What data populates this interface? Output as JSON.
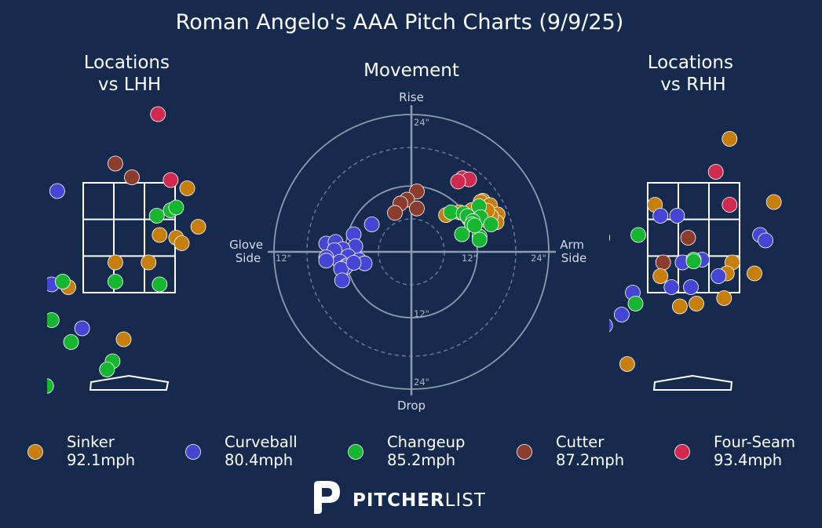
{
  "chart_data": [
    {
      "type": "scatter",
      "title": "Roman Angelo's AAA Pitch Charts (9/9/25)",
      "subtitle": "Locations\nvs LHH",
      "zone_key": "lhh",
      "points": [
        {
          "pitch": "Four-Seam",
          "x": 0.52,
          "y": 4.75
        },
        {
          "pitch": "Four-Seam",
          "x": 0.75,
          "y": 3.55
        },
        {
          "pitch": "Cutter",
          "x": -0.25,
          "y": 3.85
        },
        {
          "pitch": "Cutter",
          "x": 0.05,
          "y": 3.6
        },
        {
          "pitch": "Cutter",
          "x": -1.78,
          "y": 0.05
        },
        {
          "pitch": "Curveball",
          "x": -1.3,
          "y": 3.35
        },
        {
          "pitch": "Curveball",
          "x": -1.4,
          "y": 1.65
        },
        {
          "pitch": "Curveball",
          "x": -0.85,
          "y": 0.85
        },
        {
          "pitch": "Sinker",
          "x": 1.05,
          "y": 3.4
        },
        {
          "pitch": "Sinker",
          "x": 1.25,
          "y": 2.7
        },
        {
          "pitch": "Sinker",
          "x": 0.55,
          "y": 2.55
        },
        {
          "pitch": "Sinker",
          "x": 0.85,
          "y": 2.5
        },
        {
          "pitch": "Sinker",
          "x": 0.95,
          "y": 2.4
        },
        {
          "pitch": "Sinker",
          "x": -0.25,
          "y": 2.05
        },
        {
          "pitch": "Sinker",
          "x": 0.35,
          "y": 2.05
        },
        {
          "pitch": "Sinker",
          "x": -1.1,
          "y": 1.6
        },
        {
          "pitch": "Sinker",
          "x": -0.1,
          "y": 0.65
        },
        {
          "pitch": "Changeup",
          "x": 0.5,
          "y": 2.9
        },
        {
          "pitch": "Changeup",
          "x": 0.75,
          "y": 3.0
        },
        {
          "pitch": "Changeup",
          "x": 0.85,
          "y": 3.05
        },
        {
          "pitch": "Changeup",
          "x": -1.2,
          "y": 1.7
        },
        {
          "pitch": "Changeup",
          "x": -0.25,
          "y": 1.7
        },
        {
          "pitch": "Changeup",
          "x": 0.55,
          "y": 1.65
        },
        {
          "pitch": "Changeup",
          "x": -1.4,
          "y": 1.0
        },
        {
          "pitch": "Changeup",
          "x": -1.05,
          "y": 0.6
        },
        {
          "pitch": "Changeup",
          "x": -0.3,
          "y": 0.25
        },
        {
          "pitch": "Changeup",
          "x": -0.4,
          "y": 0.1
        },
        {
          "pitch": "Changeup",
          "x": -1.5,
          "y": -0.2
        }
      ]
    },
    {
      "type": "scatter",
      "subtitle": "Movement",
      "axis_words": {
        "top": "Rise",
        "bottom": "Drop",
        "left": "Glove\nSide",
        "right": "Arm\nSide"
      },
      "ring_labels": [
        "24\"",
        "12\"",
        "12\"",
        "24\"",
        "12\"",
        "24\""
      ],
      "max_inches": 25,
      "points": [
        {
          "pitch": "Four-Seam",
          "x": 9.3,
          "y": 13.4
        },
        {
          "pitch": "Four-Seam",
          "x": 10.5,
          "y": 13.2
        },
        {
          "pitch": "Four-Seam",
          "x": 8.5,
          "y": 12.8
        },
        {
          "pitch": "Cutter",
          "x": 1.0,
          "y": 11.0
        },
        {
          "pitch": "Cutter",
          "x": -0.8,
          "y": 9.5
        },
        {
          "pitch": "Cutter",
          "x": -2.0,
          "y": 8.8
        },
        {
          "pitch": "Cutter",
          "x": 1.0,
          "y": 7.9
        },
        {
          "pitch": "Cutter",
          "x": -3.0,
          "y": 7.1
        },
        {
          "pitch": "Curveball",
          "x": -7.2,
          "y": 5.0
        },
        {
          "pitch": "Curveball",
          "x": -10.5,
          "y": 3.2
        },
        {
          "pitch": "Curveball",
          "x": -15.5,
          "y": 1.5
        },
        {
          "pitch": "Curveball",
          "x": -13.8,
          "y": 1.8
        },
        {
          "pitch": "Curveball",
          "x": -10.2,
          "y": 1.0
        },
        {
          "pitch": "Curveball",
          "x": -12.5,
          "y": 0.5
        },
        {
          "pitch": "Curveball",
          "x": -14.0,
          "y": 0.3
        },
        {
          "pitch": "Curveball",
          "x": -15.5,
          "y": -1.0
        },
        {
          "pitch": "Curveball",
          "x": -11.5,
          "y": -0.8
        },
        {
          "pitch": "Curveball",
          "x": -9.5,
          "y": -1.5
        },
        {
          "pitch": "Curveball",
          "x": -13.0,
          "y": -1.8
        },
        {
          "pitch": "Curveball",
          "x": -11.8,
          "y": -2.5
        },
        {
          "pitch": "Curveball",
          "x": -8.5,
          "y": -2.1
        },
        {
          "pitch": "Curveball",
          "x": -15.5,
          "y": -1.6
        },
        {
          "pitch": "Curveball",
          "x": -12.0,
          "y": -2.8
        },
        {
          "pitch": "Curveball",
          "x": -12.8,
          "y": -3.1
        },
        {
          "pitch": "Curveball",
          "x": -12.6,
          "y": -5.2
        },
        {
          "pitch": "Curveball",
          "x": -10.5,
          "y": -2.0
        },
        {
          "pitch": "Sinker",
          "x": 13.0,
          "y": 9.3
        },
        {
          "pitch": "Sinker",
          "x": 12.6,
          "y": 9.1
        },
        {
          "pitch": "Sinker",
          "x": 14.3,
          "y": 8.5
        },
        {
          "pitch": "Sinker",
          "x": 11.0,
          "y": 7.6
        },
        {
          "pitch": "Sinker",
          "x": 15.7,
          "y": 6.8
        },
        {
          "pitch": "Sinker",
          "x": 15.5,
          "y": 5.4
        },
        {
          "pitch": "Sinker",
          "x": 14.5,
          "y": 6.5
        },
        {
          "pitch": "Sinker",
          "x": 12.5,
          "y": 7.0
        },
        {
          "pitch": "Sinker",
          "x": 11.8,
          "y": 6.3
        },
        {
          "pitch": "Sinker",
          "x": 13.5,
          "y": 5.8
        },
        {
          "pitch": "Sinker",
          "x": 6.3,
          "y": 6.7
        },
        {
          "pitch": "Sinker",
          "x": 13.8,
          "y": 7.5
        },
        {
          "pitch": "Sinker",
          "x": 10.5,
          "y": 6.0
        },
        {
          "pitch": "Sinker",
          "x": 8.8,
          "y": 7.2
        },
        {
          "pitch": "Changeup",
          "x": 7.2,
          "y": 7.2
        },
        {
          "pitch": "Changeup",
          "x": 9.5,
          "y": 7.0
        },
        {
          "pitch": "Changeup",
          "x": 10.2,
          "y": 6.5
        },
        {
          "pitch": "Changeup",
          "x": 12.3,
          "y": 8.3
        },
        {
          "pitch": "Changeup",
          "x": 12.6,
          "y": 6.3
        },
        {
          "pitch": "Changeup",
          "x": 11.2,
          "y": 5.6
        },
        {
          "pitch": "Changeup",
          "x": 11.0,
          "y": 5.0
        },
        {
          "pitch": "Changeup",
          "x": 14.5,
          "y": 5.0
        },
        {
          "pitch": "Changeup",
          "x": 9.2,
          "y": 3.2
        },
        {
          "pitch": "Changeup",
          "x": 12.4,
          "y": 2.8
        },
        {
          "pitch": "Changeup",
          "x": 12.4,
          "y": 2.2
        },
        {
          "pitch": "Changeup",
          "x": 11.5,
          "y": 4.8
        }
      ]
    },
    {
      "type": "scatter",
      "subtitle": "Locations\nvs RHH",
      "zone_key": "rhh",
      "points": [
        {
          "pitch": "Four-Seam",
          "x": 0.4,
          "y": 3.7
        },
        {
          "pitch": "Four-Seam",
          "x": 0.65,
          "y": 3.1
        },
        {
          "pitch": "Four-Seam",
          "x": -1.65,
          "y": 2.5
        },
        {
          "pitch": "Cutter",
          "x": -0.1,
          "y": 2.5
        },
        {
          "pitch": "Cutter",
          "x": -0.55,
          "y": 2.05
        },
        {
          "pitch": "Sinker",
          "x": 0.65,
          "y": 4.3
        },
        {
          "pitch": "Sinker",
          "x": -0.7,
          "y": 3.1
        },
        {
          "pitch": "Sinker",
          "x": 1.45,
          "y": 3.15
        },
        {
          "pitch": "Sinker",
          "x": 0.7,
          "y": 2.05
        },
        {
          "pitch": "Sinker",
          "x": 1.1,
          "y": 1.85
        },
        {
          "pitch": "Sinker",
          "x": 0.6,
          "y": 1.85
        },
        {
          "pitch": "Sinker",
          "x": -0.6,
          "y": 1.8
        },
        {
          "pitch": "Sinker",
          "x": 0.55,
          "y": 1.4
        },
        {
          "pitch": "Sinker",
          "x": 0.05,
          "y": 1.3
        },
        {
          "pitch": "Sinker",
          "x": -0.25,
          "y": 1.25
        },
        {
          "pitch": "Sinker",
          "x": -1.2,
          "y": 0.2
        },
        {
          "pitch": "Curveball",
          "x": -0.3,
          "y": 2.9
        },
        {
          "pitch": "Curveball",
          "x": -0.6,
          "y": 2.9
        },
        {
          "pitch": "Curveball",
          "x": 1.2,
          "y": 2.55
        },
        {
          "pitch": "Curveball",
          "x": 1.3,
          "y": 2.45
        },
        {
          "pitch": "Curveball",
          "x": 0.15,
          "y": 2.1
        },
        {
          "pitch": "Curveball",
          "x": -0.2,
          "y": 2.05
        },
        {
          "pitch": "Curveball",
          "x": 0.45,
          "y": 1.8
        },
        {
          "pitch": "Curveball",
          "x": -0.4,
          "y": 1.6
        },
        {
          "pitch": "Curveball",
          "x": -0.05,
          "y": 1.6
        },
        {
          "pitch": "Curveball",
          "x": -1.1,
          "y": 1.5
        },
        {
          "pitch": "Curveball",
          "x": -1.7,
          "y": 1.9
        },
        {
          "pitch": "Curveball",
          "x": -1.3,
          "y": 1.1
        },
        {
          "pitch": "Curveball",
          "x": -1.6,
          "y": 0.9
        },
        {
          "pitch": "Changeup",
          "x": -1.0,
          "y": 2.55
        },
        {
          "pitch": "Changeup",
          "x": 0.0,
          "y": 2.1
        },
        {
          "pitch": "Changeup",
          "x": -0.0,
          "y": 2.07
        },
        {
          "pitch": "Changeup",
          "x": -1.05,
          "y": 1.3
        }
      ]
    }
  ],
  "legend": [
    {
      "pitch": "Sinker",
      "speed": "92.1mph",
      "color": "#c67f0c"
    },
    {
      "pitch": "Curveball",
      "speed": "80.4mph",
      "color": "#4646d6"
    },
    {
      "pitch": "Changeup",
      "speed": "85.2mph",
      "color": "#17b631"
    },
    {
      "pitch": "Cutter",
      "speed": "87.2mph",
      "color": "#8c3c2c"
    },
    {
      "pitch": "Four-Seam",
      "speed": "93.4mph",
      "color": "#d2294f"
    }
  ],
  "logo": {
    "bold": "PITCHER",
    "light": "LIST"
  },
  "colors": {
    "background": "#162a4d",
    "zone_line": "#ffffff",
    "ring": "#8e9bb2"
  }
}
